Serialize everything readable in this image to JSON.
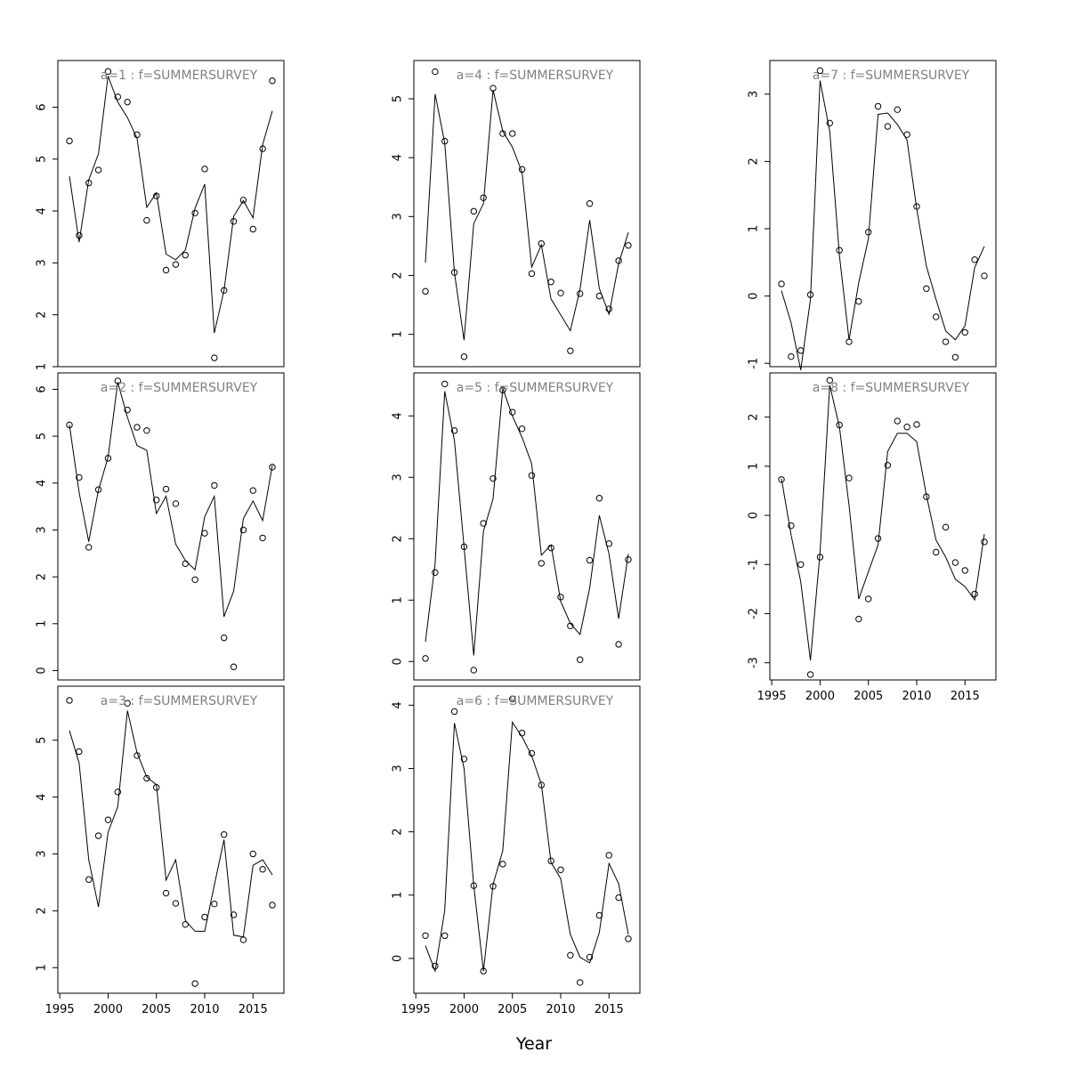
{
  "figure": {
    "xlabel": "Year",
    "line_color": "#000000",
    "point_color": "#000000",
    "title_color": "#808080",
    "background": "#ffffff"
  },
  "chart_data": [
    {
      "type": "scatter+line",
      "title": "a=1  :  f=SUMMERSURVEY",
      "xlim": [
        1994.8,
        2018.2
      ],
      "ylim": [
        1.0,
        6.9
      ],
      "yticks": [
        1,
        2,
        3,
        4,
        5,
        6
      ],
      "show_xticks": false,
      "observed": {
        "x": [
          1996,
          1997,
          1998,
          1999,
          2000,
          2001,
          2002,
          2003,
          2004,
          2005,
          2006,
          2007,
          2008,
          2009,
          2010,
          2011,
          2012,
          2013,
          2014,
          2015,
          2016,
          2017
        ],
        "y": [
          5.35,
          3.53,
          4.54,
          4.79,
          6.69,
          6.2,
          6.1,
          5.47,
          3.82,
          4.29,
          2.86,
          2.97,
          3.15,
          3.96,
          4.81,
          1.17,
          2.47,
          3.8,
          4.21,
          3.65,
          5.2,
          6.51
        ]
      },
      "fitted": {
        "x": [
          1996,
          1997,
          1998,
          1999,
          2000,
          2001,
          2002,
          2003,
          2004,
          2005,
          2006,
          2007,
          2008,
          2009,
          2010,
          2011,
          2012,
          2013,
          2014,
          2015,
          2016,
          2017
        ],
        "y": [
          4.67,
          3.4,
          4.6,
          5.1,
          6.6,
          6.1,
          5.8,
          5.4,
          4.07,
          4.35,
          3.17,
          3.06,
          3.25,
          4.05,
          4.52,
          1.65,
          2.47,
          3.9,
          4.2,
          3.87,
          5.28,
          5.93
        ]
      }
    },
    {
      "type": "scatter+line",
      "title": "a=2  :  f=SUMMERSURVEY",
      "xlim": [
        1994.8,
        2018.2
      ],
      "ylim": [
        -0.2,
        6.35
      ],
      "yticks": [
        0,
        1,
        2,
        3,
        4,
        5,
        6
      ],
      "show_xticks": false,
      "observed": {
        "x": [
          1996,
          1997,
          1998,
          1999,
          2000,
          2001,
          2002,
          2003,
          2004,
          2005,
          2006,
          2007,
          2008,
          2009,
          2010,
          2011,
          2012,
          2013,
          2014,
          2015,
          2016,
          2017
        ],
        "y": [
          5.24,
          4.12,
          2.63,
          3.86,
          4.53,
          6.18,
          5.56,
          5.19,
          5.12,
          3.64,
          3.87,
          3.56,
          2.28,
          1.94,
          2.93,
          3.95,
          0.7,
          0.08,
          3.0,
          3.84,
          2.83,
          4.34
        ]
      },
      "fitted": {
        "x": [
          1996,
          1997,
          1998,
          1999,
          2000,
          2001,
          2002,
          2003,
          2004,
          2005,
          2006,
          2007,
          2008,
          2009,
          2010,
          2011,
          2012,
          2013,
          2014,
          2015,
          2016,
          2017
        ],
        "y": [
          5.24,
          3.8,
          2.75,
          3.85,
          4.55,
          6.15,
          5.4,
          4.8,
          4.7,
          3.35,
          3.72,
          2.7,
          2.35,
          2.15,
          3.28,
          3.72,
          1.15,
          1.7,
          3.24,
          3.62,
          3.2,
          4.38
        ]
      }
    },
    {
      "type": "scatter+line",
      "title": "a=3  :  f=SUMMERSURVEY",
      "xlim": [
        1994.8,
        2018.2
      ],
      "ylim": [
        0.55,
        5.95
      ],
      "yticks": [
        1,
        2,
        3,
        4,
        5
      ],
      "show_xticks": true,
      "xticks": [
        1995,
        2000,
        2005,
        2010,
        2015
      ],
      "observed": {
        "x": [
          1996,
          1997,
          1998,
          1999,
          2000,
          2001,
          2002,
          2003,
          2004,
          2005,
          2006,
          2007,
          2008,
          2009,
          2010,
          2011,
          2012,
          2013,
          2014,
          2015,
          2016,
          2017
        ],
        "y": [
          5.7,
          4.8,
          2.55,
          3.32,
          3.6,
          4.09,
          5.65,
          4.73,
          4.33,
          4.17,
          2.31,
          2.13,
          1.76,
          0.72,
          1.89,
          2.12,
          3.34,
          1.93,
          1.49,
          3.0,
          2.73,
          2.1
        ]
      },
      "fitted": {
        "x": [
          1996,
          1997,
          1998,
          1999,
          2000,
          2001,
          2002,
          2003,
          2004,
          2005,
          2006,
          2007,
          2008,
          2009,
          2010,
          2011,
          2012,
          2013,
          2014,
          2015,
          2016,
          2017
        ],
        "y": [
          5.17,
          4.6,
          2.9,
          2.07,
          3.38,
          3.83,
          5.52,
          4.78,
          4.35,
          4.22,
          2.54,
          2.9,
          1.83,
          1.64,
          1.64,
          2.45,
          3.25,
          1.57,
          1.54,
          2.8,
          2.9,
          2.63
        ]
      }
    },
    {
      "type": "scatter+line",
      "title": "a=4  :  f=SUMMERSURVEY",
      "xlim": [
        1994.8,
        2018.2
      ],
      "ylim": [
        0.45,
        5.65
      ],
      "yticks": [
        1,
        2,
        3,
        4,
        5
      ],
      "show_xticks": false,
      "observed": {
        "x": [
          1996,
          1997,
          1998,
          1999,
          2000,
          2001,
          2002,
          2003,
          2004,
          2005,
          2006,
          2007,
          2008,
          2009,
          2010,
          2011,
          2012,
          2013,
          2014,
          2015,
          2016,
          2017
        ],
        "y": [
          1.73,
          5.46,
          4.28,
          2.05,
          0.62,
          3.09,
          3.32,
          5.18,
          4.41,
          4.41,
          3.8,
          2.03,
          2.54,
          1.89,
          1.7,
          0.72,
          1.69,
          3.22,
          1.65,
          1.43,
          2.25,
          2.51
        ]
      },
      "fitted": {
        "x": [
          1996,
          1997,
          1998,
          1999,
          2000,
          2001,
          2002,
          2003,
          2004,
          2005,
          2006,
          2007,
          2008,
          2009,
          2010,
          2011,
          2012,
          2013,
          2014,
          2015,
          2016,
          2017
        ],
        "y": [
          2.22,
          5.08,
          4.25,
          2.05,
          0.9,
          2.88,
          3.22,
          5.15,
          4.45,
          4.18,
          3.75,
          2.14,
          2.52,
          1.6,
          1.33,
          1.06,
          1.76,
          2.94,
          1.78,
          1.34,
          2.2,
          2.73
        ]
      }
    },
    {
      "type": "scatter+line",
      "title": "a=5  :  f=SUMMERSURVEY",
      "xlim": [
        1994.8,
        2018.2
      ],
      "ylim": [
        -0.3,
        4.7
      ],
      "yticks": [
        0,
        1,
        2,
        3,
        4
      ],
      "show_xticks": false,
      "observed": {
        "x": [
          1996,
          1997,
          1998,
          1999,
          2000,
          2001,
          2002,
          2003,
          2004,
          2005,
          2006,
          2007,
          2008,
          2009,
          2010,
          2011,
          2012,
          2013,
          2014,
          2015,
          2016,
          2017
        ],
        "y": [
          0.05,
          1.45,
          4.52,
          3.76,
          1.87,
          -0.14,
          2.25,
          2.98,
          4.42,
          4.06,
          3.79,
          3.03,
          1.6,
          1.85,
          1.05,
          0.58,
          0.03,
          1.65,
          2.66,
          1.92,
          0.28,
          1.66
        ]
      },
      "fitted": {
        "x": [
          1996,
          1997,
          1998,
          1999,
          2000,
          2001,
          2002,
          2003,
          2004,
          2005,
          2006,
          2007,
          2008,
          2009,
          2010,
          2011,
          2012,
          2013,
          2014,
          2015,
          2016,
          2017
        ],
        "y": [
          0.32,
          1.6,
          4.4,
          3.6,
          1.87,
          0.1,
          2.12,
          2.65,
          4.45,
          4.0,
          3.65,
          3.22,
          1.73,
          1.9,
          0.98,
          0.62,
          0.44,
          1.2,
          2.38,
          1.75,
          0.7,
          1.75
        ]
      }
    },
    {
      "type": "scatter+line",
      "title": "a=6  :  f=SUMMERSURVEY",
      "xlim": [
        1994.8,
        2018.2
      ],
      "ylim": [
        -0.55,
        4.3
      ],
      "yticks": [
        0,
        1,
        2,
        3,
        4
      ],
      "show_xticks": true,
      "xticks": [
        1995,
        2000,
        2005,
        2010,
        2015
      ],
      "observed": {
        "x": [
          1996,
          1997,
          1998,
          1999,
          2000,
          2001,
          2002,
          2003,
          2004,
          2005,
          2006,
          2007,
          2008,
          2009,
          2010,
          2011,
          2012,
          2013,
          2014,
          2015,
          2016,
          2017
        ],
        "y": [
          0.36,
          -0.12,
          0.36,
          3.9,
          3.15,
          1.15,
          -0.2,
          1.14,
          1.49,
          4.1,
          3.56,
          3.24,
          2.74,
          1.54,
          1.4,
          0.05,
          -0.38,
          0.02,
          0.68,
          1.63,
          0.96,
          0.31
        ]
      },
      "fitted": {
        "x": [
          1996,
          1997,
          1998,
          1999,
          2000,
          2001,
          2002,
          2003,
          2004,
          2005,
          2006,
          2007,
          2008,
          2009,
          2010,
          2011,
          2012,
          2013,
          2014,
          2015,
          2016,
          2017
        ],
        "y": [
          0.2,
          -0.2,
          0.76,
          3.72,
          3.0,
          1.15,
          -0.2,
          1.17,
          1.7,
          3.73,
          3.5,
          3.2,
          2.75,
          1.52,
          1.26,
          0.38,
          0.02,
          -0.07,
          0.41,
          1.5,
          1.18,
          0.38
        ]
      }
    },
    {
      "type": "scatter+line",
      "title": "a=7  :  f=SUMMERSURVEY",
      "xlim": [
        1994.8,
        2018.2
      ],
      "ylim": [
        -1.05,
        3.5
      ],
      "yticks": [
        -1,
        0,
        1,
        2,
        3
      ],
      "show_xticks": false,
      "observed": {
        "x": [
          1996,
          1997,
          1998,
          1999,
          2000,
          2001,
          2002,
          2003,
          2004,
          2005,
          2006,
          2007,
          2008,
          2009,
          2010,
          2011,
          2012,
          2013,
          2014,
          2015,
          2016,
          2017
        ],
        "y": [
          0.18,
          -0.9,
          -0.81,
          0.02,
          3.35,
          2.57,
          0.68,
          -0.68,
          -0.08,
          0.95,
          2.82,
          2.52,
          2.77,
          2.4,
          1.33,
          0.11,
          -0.31,
          -0.68,
          -0.91,
          -0.54,
          0.54,
          0.3
        ]
      },
      "fitted": {
        "x": [
          1996,
          1997,
          1998,
          1999,
          2000,
          2001,
          2002,
          2003,
          2004,
          2005,
          2006,
          2007,
          2008,
          2009,
          2010,
          2011,
          2012,
          2013,
          2014,
          2015,
          2016,
          2017
        ],
        "y": [
          0.08,
          -0.4,
          -1.1,
          -0.05,
          3.2,
          2.45,
          0.6,
          -0.65,
          0.2,
          0.85,
          2.7,
          2.72,
          2.55,
          2.32,
          1.3,
          0.45,
          -0.05,
          -0.52,
          -0.65,
          -0.44,
          0.42,
          0.74
        ]
      }
    },
    {
      "type": "scatter+line",
      "title": "a=8  :  f=SUMMERSURVEY",
      "xlim": [
        1994.8,
        2018.2
      ],
      "ylim": [
        -3.35,
        2.9
      ],
      "yticks": [
        -3,
        -2,
        -1,
        0,
        1,
        2
      ],
      "show_xticks": true,
      "xticks": [
        1995,
        2000,
        2005,
        2010,
        2015
      ],
      "observed": {
        "x": [
          1996,
          1997,
          1998,
          1999,
          2000,
          2001,
          2002,
          2003,
          2004,
          2005,
          2006,
          2007,
          2008,
          2009,
          2010,
          2011,
          2012,
          2013,
          2014,
          2015,
          2016,
          2017
        ],
        "y": [
          0.73,
          -0.21,
          -1.0,
          -3.24,
          -0.85,
          2.75,
          1.84,
          0.76,
          -2.11,
          -1.7,
          -0.47,
          1.02,
          1.92,
          1.8,
          1.85,
          0.38,
          -0.75,
          -0.24,
          -0.96,
          -1.12,
          -1.6,
          -0.54
        ]
      },
      "fitted": {
        "x": [
          1996,
          1997,
          1998,
          1999,
          2000,
          2001,
          2002,
          2003,
          2004,
          2005,
          2006,
          2007,
          2008,
          2009,
          2010,
          2011,
          2012,
          2013,
          2014,
          2015,
          2016,
          2017
        ],
        "y": [
          0.75,
          -0.4,
          -1.35,
          -2.95,
          -0.75,
          2.65,
          1.8,
          0.2,
          -1.7,
          -1.15,
          -0.6,
          1.3,
          1.67,
          1.67,
          1.5,
          0.42,
          -0.5,
          -0.85,
          -1.3,
          -1.45,
          -1.72,
          -0.38
        ]
      }
    }
  ]
}
